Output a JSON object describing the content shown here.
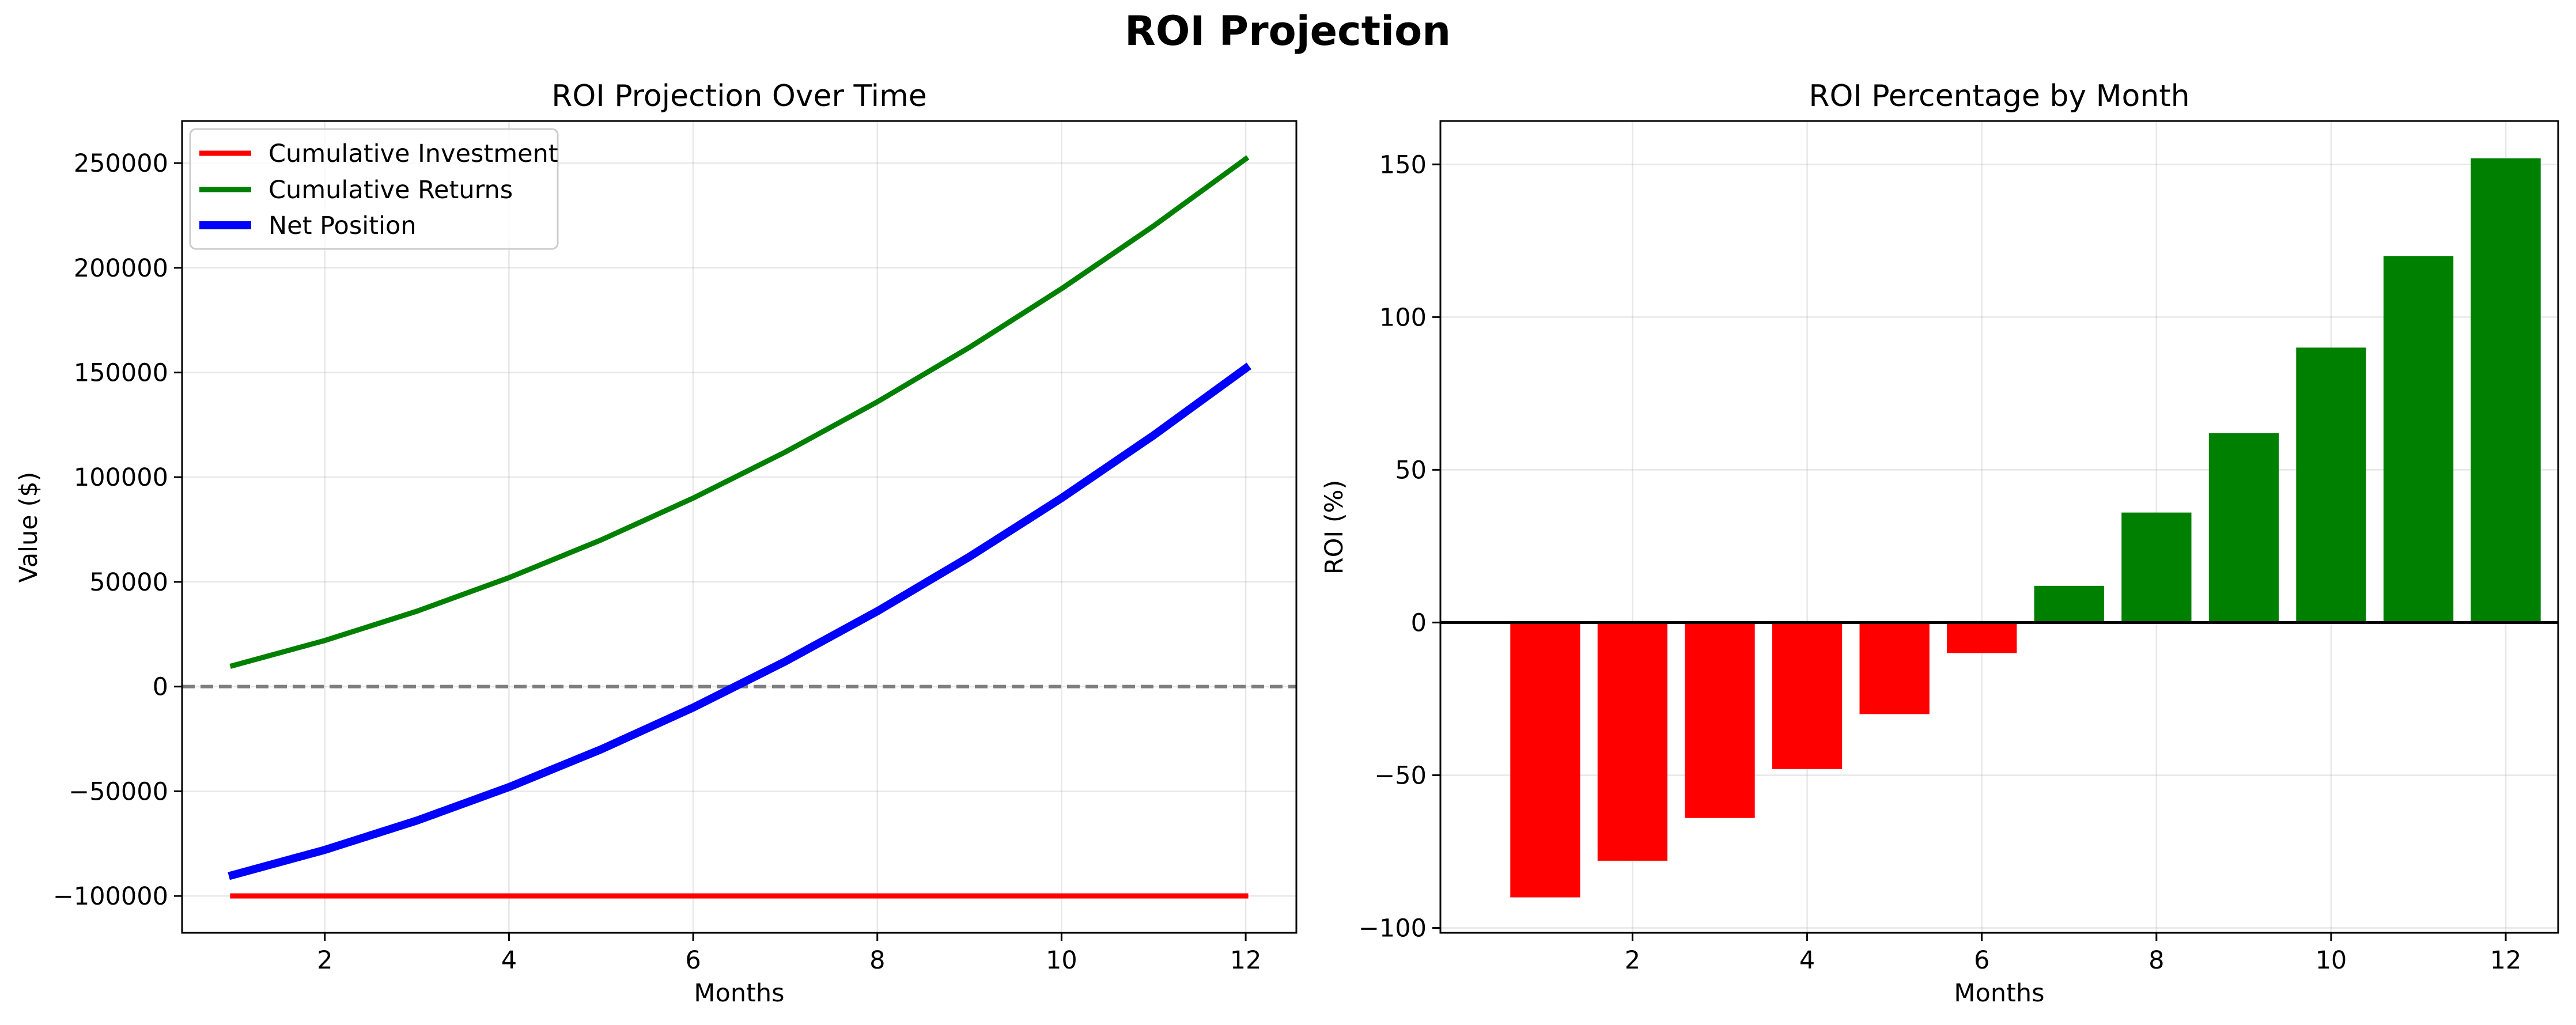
{
  "figure": {
    "title": "ROI Projection"
  },
  "chart_data": [
    {
      "type": "line",
      "title": "ROI Projection Over Time",
      "xlabel": "Months",
      "ylabel": "Value ($)",
      "x": [
        1,
        2,
        3,
        4,
        5,
        6,
        7,
        8,
        9,
        10,
        11,
        12
      ],
      "xticks": [
        2,
        4,
        6,
        8,
        10,
        12
      ],
      "yticks": [
        -100000,
        -50000,
        0,
        50000,
        100000,
        150000,
        200000,
        250000
      ],
      "ytick_labels": [
        "−100000",
        "−50000",
        "0",
        "50000",
        "100000",
        "150000",
        "200000",
        "250000"
      ],
      "xlim": [
        0.45,
        12.55
      ],
      "ylim": [
        -117600,
        270100
      ],
      "grid": true,
      "legend_position": "upper-left",
      "reference_line": {
        "y": 0,
        "style": "dashed",
        "color": "#7f7f7f"
      },
      "series": [
        {
          "name": "Cumulative Investment",
          "color": "#ff0000",
          "width": 9,
          "values": [
            -100000,
            -100000,
            -100000,
            -100000,
            -100000,
            -100000,
            -100000,
            -100000,
            -100000,
            -100000,
            -100000,
            -100000
          ]
        },
        {
          "name": "Cumulative Returns",
          "color": "#008000",
          "width": 9,
          "values": [
            10000,
            22000,
            36000,
            52000,
            70000,
            90000,
            112000,
            136000,
            162000,
            190000,
            220000,
            252000
          ]
        },
        {
          "name": "Net Position",
          "color": "#0000ff",
          "width": 14,
          "values": [
            -90000,
            -78000,
            -64000,
            -48000,
            -30000,
            -10000,
            12000,
            36000,
            62000,
            90000,
            120000,
            152000
          ]
        }
      ]
    },
    {
      "type": "bar",
      "title": "ROI Percentage by Month",
      "xlabel": "Months",
      "ylabel": "ROI (%)",
      "categories": [
        1,
        2,
        3,
        4,
        5,
        6,
        7,
        8,
        9,
        10,
        11,
        12
      ],
      "values": [
        -90,
        -78,
        -64,
        -48,
        -30,
        -10,
        12,
        36,
        62,
        90,
        120,
        152
      ],
      "xticks": [
        2,
        4,
        6,
        8,
        10,
        12
      ],
      "yticks": [
        -100,
        -50,
        0,
        50,
        100,
        150
      ],
      "ytick_labels": [
        "−100",
        "−50",
        "0",
        "50",
        "100",
        "150"
      ],
      "xlim": [
        -0.2,
        12.6
      ],
      "ylim": [
        -101.6,
        164.2
      ],
      "grid": true,
      "negative_color": "#ff0000",
      "positive_color": "#008000",
      "reference_line": {
        "y": 0,
        "style": "solid",
        "color": "#000000"
      }
    }
  ]
}
